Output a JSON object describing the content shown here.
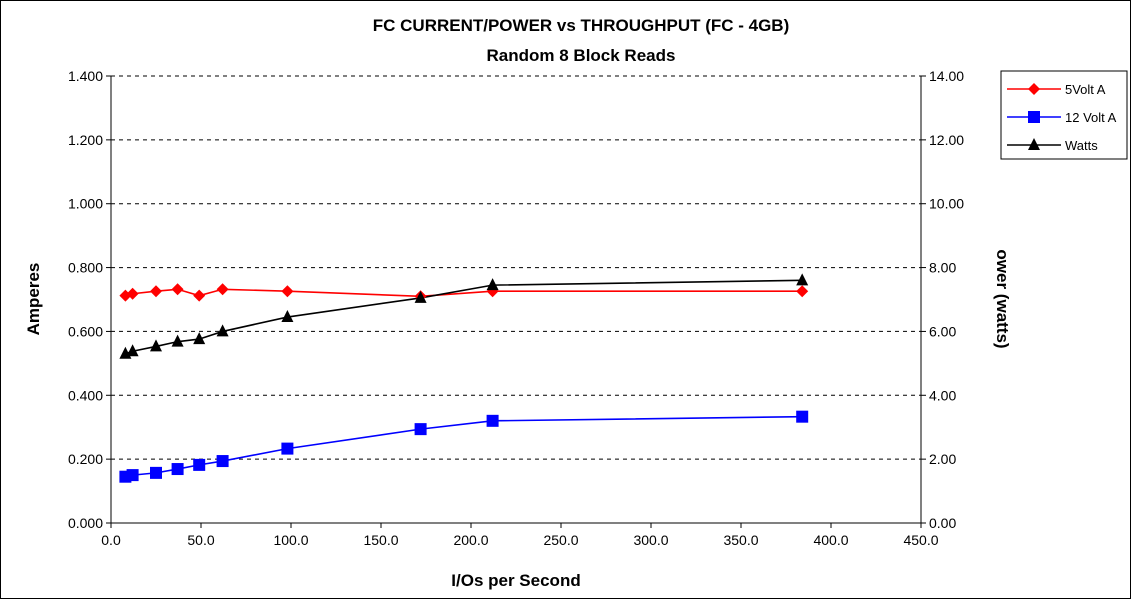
{
  "chart_data": {
    "type": "line",
    "title": "FC CURRENT/POWER vs THROUGHPUT (FC - 4GB)",
    "subtitle": "Random 8 Block Reads",
    "xlabel": "I/Os per Second",
    "ylabel": "Amperes",
    "y2label": "Power (watts)",
    "y2label_visible": "ower (watts)",
    "xlim": [
      0,
      450
    ],
    "ylim": [
      0,
      1.4
    ],
    "y2lim": [
      0,
      14
    ],
    "x_ticks": [
      "0.0",
      "50.0",
      "100.0",
      "150.0",
      "200.0",
      "250.0",
      "300.0",
      "350.0",
      "400.0",
      "450.0"
    ],
    "y_ticks": [
      "0.000",
      "0.200",
      "0.400",
      "0.600",
      "0.800",
      "1.000",
      "1.200",
      "1.400"
    ],
    "y2_ticks": [
      "0.00",
      "2.00",
      "4.00",
      "6.00",
      "8.00",
      "10.00",
      "12.00",
      "14.00"
    ],
    "grid": "horizontal dashed",
    "legend_position": "right-top",
    "x": [
      8,
      12,
      25,
      37,
      49,
      62,
      98,
      172,
      212,
      384
    ],
    "series": [
      {
        "name": "5Volt A",
        "axis": "left",
        "color": "#ff0000",
        "marker": "diamond",
        "values": [
          0.712,
          0.718,
          0.726,
          0.732,
          0.712,
          0.732,
          0.726,
          0.71,
          0.726,
          0.726
        ]
      },
      {
        "name": "12 Volt A",
        "axis": "left",
        "color": "#0000ff",
        "marker": "square",
        "values": [
          0.145,
          0.15,
          0.157,
          0.169,
          0.182,
          0.194,
          0.233,
          0.294,
          0.32,
          0.333
        ]
      },
      {
        "name": "Watts",
        "axis": "right",
        "color": "#000000",
        "marker": "triangle",
        "values": [
          5.3,
          5.38,
          5.53,
          5.68,
          5.76,
          6.0,
          6.45,
          7.05,
          7.45,
          7.6
        ]
      }
    ]
  }
}
